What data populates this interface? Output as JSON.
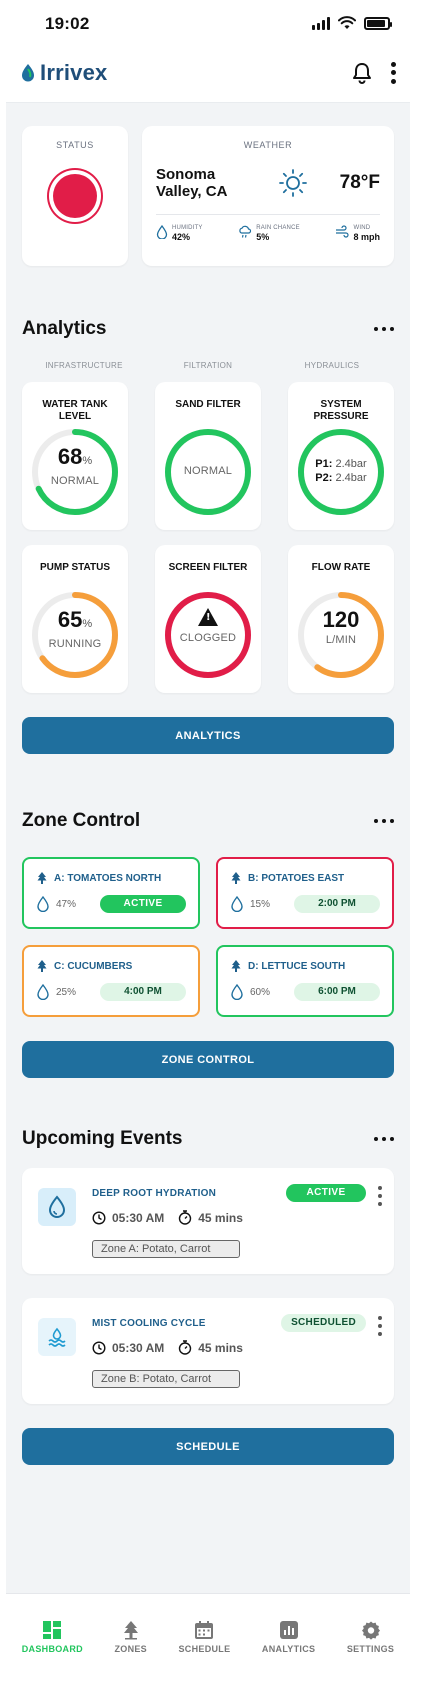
{
  "status_bar": {
    "time": "19:02"
  },
  "app": {
    "brand_prefix": "I",
    "brand_name": "rrivex"
  },
  "status_card": {
    "label": "STATUS"
  },
  "weather": {
    "label": "WEATHER",
    "location_line1": "Sonoma",
    "location_line2": "Valley, CA",
    "temperature": "78°F",
    "stats": [
      {
        "label": "HUMIDITY",
        "value": "42%",
        "icon": "droplet-icon"
      },
      {
        "label": "RAIN CHANCE",
        "value": "5%",
        "icon": "rain-cloud-icon"
      },
      {
        "label": "WIND",
        "value": "8 mph",
        "icon": "wind-icon"
      }
    ]
  },
  "analytics": {
    "title": "Analytics",
    "columns": [
      "INFRASTRUCTURE",
      "FILTRATION",
      "HYDRAULICS"
    ],
    "tiles": [
      {
        "title": "WATER TANK LEVEL",
        "big": "68",
        "unit": "%",
        "sub": "NORMAL",
        "progress": 0.68,
        "color": "#22c55e"
      },
      {
        "title": "SAND FILTER",
        "big": "",
        "unit": "",
        "sub": "NORMAL",
        "progress": 1,
        "color": "#22c55e"
      },
      {
        "title": "SYSTEM PRESSURE",
        "p1_label": "P1:",
        "p1": "2.4bar",
        "p2_label": "P2:",
        "p2": "2.4bar",
        "progress": 1,
        "color": "#22c55e"
      },
      {
        "title": "PUMP STATUS",
        "big": "65",
        "unit": "%",
        "sub": "RUNNING",
        "progress": 0.65,
        "color": "#f59e3b"
      },
      {
        "title": "SCREEN FILTER",
        "big": "",
        "unit": "",
        "sub": "CLOGGED",
        "progress": 1,
        "color": "#e11d48"
      },
      {
        "title": "FLOW RATE",
        "big": "120",
        "unit": "",
        "sub": "L/MIN",
        "progress": 0.6,
        "color": "#f59e3b"
      }
    ],
    "button": "ANALYTICS"
  },
  "zones": {
    "title": "Zone Control",
    "items": [
      {
        "name": "A: TOMATOES NORTH",
        "moisture": "47%",
        "pill": "ACTIVE",
        "color": "#22c55e"
      },
      {
        "name": "B: POTATOES EAST",
        "moisture": "15%",
        "pill": "2:00 PM",
        "color": "#e11d48"
      },
      {
        "name": "C: CUCUMBERS",
        "moisture": "25%",
        "pill": "4:00 PM",
        "color": "#f59e3b"
      },
      {
        "name": "D: LETTUCE SOUTH",
        "moisture": "60%",
        "pill": "6:00 PM",
        "color": "#22c55e"
      }
    ],
    "button": "ZONE CONTROL"
  },
  "events": {
    "title": "Upcoming Events",
    "items": [
      {
        "title": "DEEP ROOT HYDRATION",
        "time": "05:30 AM",
        "duration": "45 mins",
        "zone": "Zone A: Potato, Carrot",
        "status": "ACTIVE",
        "icon": "droplet-icon"
      },
      {
        "title": "MIST COOLING CYCLE",
        "time": "05:30 AM",
        "duration": "45 mins",
        "zone": "Zone B: Potato, Carrot",
        "status": "SCHEDULED",
        "icon": "mist-icon"
      }
    ],
    "button": "SCHEDULE"
  },
  "nav": [
    {
      "label": "DASHBOARD",
      "icon": "dashboard-icon",
      "active": true
    },
    {
      "label": "ZONES",
      "icon": "tree-icon"
    },
    {
      "label": "SCHEDULE",
      "icon": "calendar-icon"
    },
    {
      "label": "ANALYTICS",
      "icon": "chart-icon"
    },
    {
      "label": "SETTINGS",
      "icon": "gear-icon"
    }
  ]
}
